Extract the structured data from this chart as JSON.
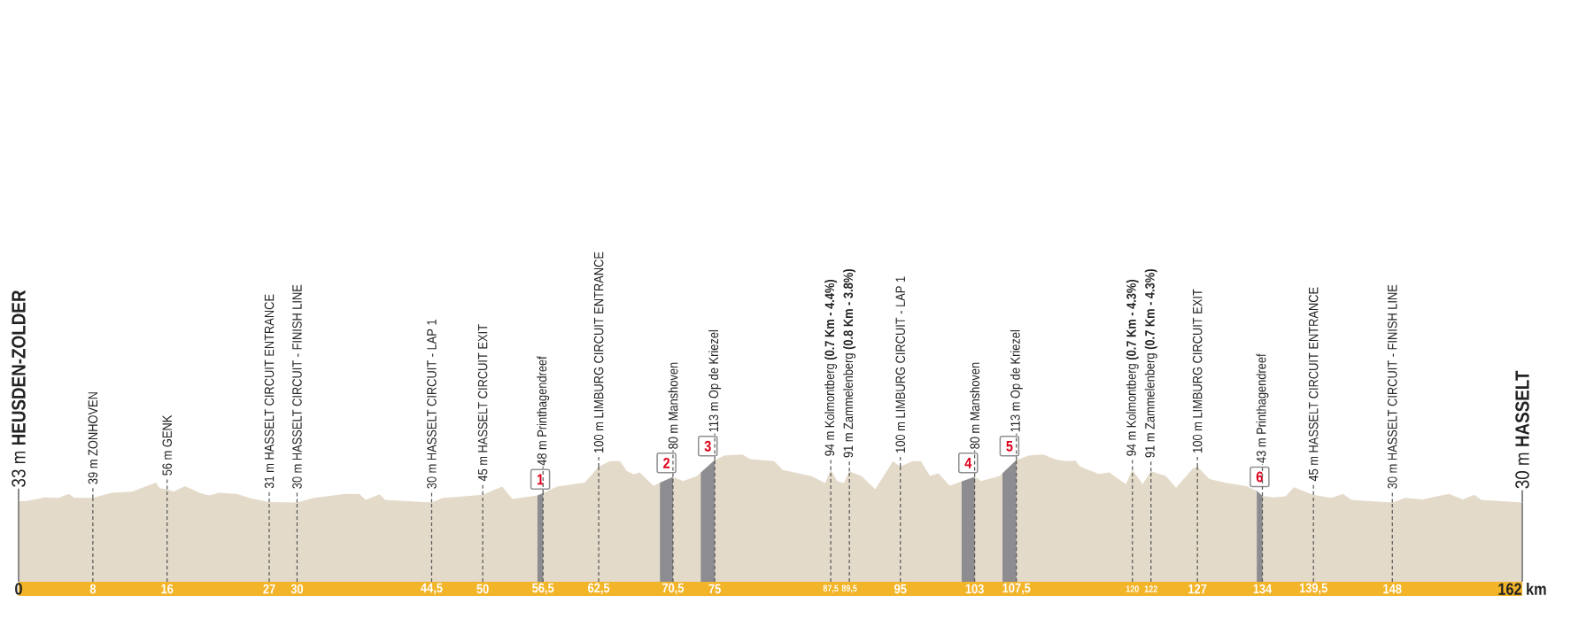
{
  "chart_data": {
    "type": "area",
    "color": "#e4dac9",
    "x": [
      0,
      0.9,
      2.8,
      4.3,
      5.4,
      6.0,
      8,
      10.0,
      12.2,
      14.8,
      15.2,
      16,
      16.7,
      17.9,
      18.4,
      19.5,
      20.5,
      21.6,
      23.5,
      25.0,
      27,
      30,
      31.8,
      35.2,
      36.7,
      37.4,
      38.9,
      39.5,
      44.5,
      45.7,
      50,
      52.1,
      53.2,
      55.9,
      56.5,
      58.0,
      61.0,
      62.5,
      63.7,
      64.8,
      65.5,
      66.3,
      66.9,
      68.4,
      70.5,
      71.6,
      73.1,
      75,
      76.1,
      78.0,
      78.8,
      81.4,
      82.3,
      84.0,
      85.5,
      86.9,
      87.5,
      88.2,
      88.9,
      89.5,
      90.8,
      92.3,
      94.2,
      95,
      96.3,
      97.2,
      98.2,
      99.1,
      100.3,
      103,
      103.7,
      105.7,
      107.5,
      108.9,
      110.4,
      111.6,
      112.7,
      113.9,
      114.3,
      114.9,
      116.4,
      117.5,
      119.3,
      120,
      121.1,
      122,
      123.6,
      124.7,
      126.5,
      127,
      128.3,
      130.2,
      132.3,
      133.4,
      134,
      135.2,
      136.5,
      137.4,
      138.9,
      139.5,
      141.4,
      142.7,
      143.6,
      148,
      149.4,
      151.2,
      154.1,
      155.6,
      156.8,
      157.6,
      162
    ],
    "values": [
      33,
      33,
      40,
      39,
      47,
      39,
      39,
      49,
      51,
      69,
      58,
      56,
      51,
      62,
      58,
      49,
      44,
      49,
      47,
      38,
      31,
      30,
      39,
      47,
      47,
      35,
      46,
      35,
      30,
      39,
      45,
      61,
      37,
      44,
      48,
      61,
      69,
      100,
      111,
      111,
      92,
      85,
      89,
      63,
      80,
      72,
      82,
      113,
      122,
      124,
      115,
      111,
      94,
      87,
      81,
      68,
      94,
      72,
      68,
      91,
      82,
      56,
      111,
      100,
      111,
      111,
      82,
      87,
      63,
      80,
      72,
      82,
      113,
      122,
      124,
      115,
      111,
      112,
      101,
      96,
      86,
      89,
      66,
      94,
      66,
      91,
      82,
      59,
      96,
      100,
      76,
      68,
      62,
      53,
      43,
      40,
      42,
      60,
      49,
      45,
      39,
      47,
      35,
      30,
      39,
      36,
      47,
      36,
      45,
      35,
      30
    ],
    "value_labels": [
      "33 m **HEUSDEN-ZOLDER**",
      null,
      null,
      null,
      null,
      null,
      "39 m ZONHOVEN",
      null,
      null,
      null,
      null,
      "56 m GENK",
      null,
      null,
      null,
      null,
      null,
      null,
      null,
      null,
      "31 m HASSELT CIRCUIT ENTRANCE",
      "30 m HASSELT CIRCUIT - FINISH LINE",
      null,
      null,
      null,
      null,
      null,
      null,
      "30 m HASSELT CIRCUIT - LAP 1",
      null,
      "45 m HASSELT CIRCUIT EXIT",
      null,
      null,
      null,
      "48 m Printhagendreef",
      null,
      null,
      "100 m LIMBURG CIRCUIT ENTRANCE",
      null,
      null,
      null,
      null,
      null,
      null,
      "80 m Manshoven",
      null,
      null,
      "113 m Op de Kriezel",
      null,
      null,
      null,
      null,
      null,
      null,
      null,
      null,
      "94 m Kolmontberg **(0.7 Km - 4.4%)**",
      null,
      null,
      "91 m Zammelenberg **(0.8 Km - 3.8%)**",
      null,
      null,
      null,
      "100 m LIMBURG CIRCUIT - LAP 1",
      null,
      null,
      null,
      null,
      null,
      "80 m Manshoven",
      null,
      null,
      "113 m Op de Kriezel",
      null,
      null,
      null,
      null,
      null,
      null,
      null,
      null,
      null,
      null,
      "94 m Kolmontberg **(0.7 Km - 4.3%)**",
      null,
      "91 m Zammelenberg **(0.7 Km - 4.3%)**",
      null,
      null,
      null,
      "100 m LIMBURG CIRCUIT EXIT",
      null,
      null,
      null,
      null,
      "43 m Printhagendreef",
      null,
      null,
      null,
      null,
      "45 m HASSELT CIRCUIT ENTRANCE",
      null,
      null,
      null,
      "30 m HASSELT CIRCUIT - FINISH LINE",
      null,
      null,
      null,
      null,
      null,
      null,
      "30 m **HASSELT**"
    ],
    "xlim": [
      0,
      162
    ],
    "xticks": [
      0,
      8,
      16,
      27,
      30,
      {
        "value": 44.5,
        "label": "44,5"
      },
      50,
      {
        "value": 56.5,
        "label": "56,5"
      },
      {
        "value": 62.5,
        "label": "62,5"
      },
      {
        "value": 70.5,
        "label": "70,5"
      },
      75,
      {
        "value": 87.5,
        "label": "87,5"
      },
      {
        "value": 89.5,
        "label": "89,5"
      },
      95,
      103,
      {
        "value": 107.5,
        "label": "107,5"
      },
      120,
      122,
      127,
      134,
      {
        "value": 139.5,
        "label": "139,5"
      },
      148,
      {
        "value": 162,
        "label": "162 km"
      }
    ],
    "grid": "x",
    "tick_labels": "x",
    "bands": [
      {
        "axis": "x",
        "from": 55.9,
        "to": 56.5,
        "label": "1",
        "color": "#8d8c91"
      },
      {
        "axis": "x",
        "from": 69.1,
        "to": 70.5,
        "label": "2",
        "color": "#8d8c91"
      },
      {
        "axis": "x",
        "from": 73.5,
        "to": 75,
        "label": "3",
        "color": "#8d8c91"
      },
      {
        "axis": "x",
        "from": 101.6,
        "to": 103,
        "label": "4",
        "color": "#8d8c91"
      },
      {
        "axis": "x",
        "from": 106.0,
        "to": 107.5,
        "label": "5",
        "color": "#8d8c91"
      },
      {
        "axis": "x",
        "from": 133.4,
        "to": 134,
        "label": "6",
        "color": "#8d8c91"
      }
    ]
  }
}
